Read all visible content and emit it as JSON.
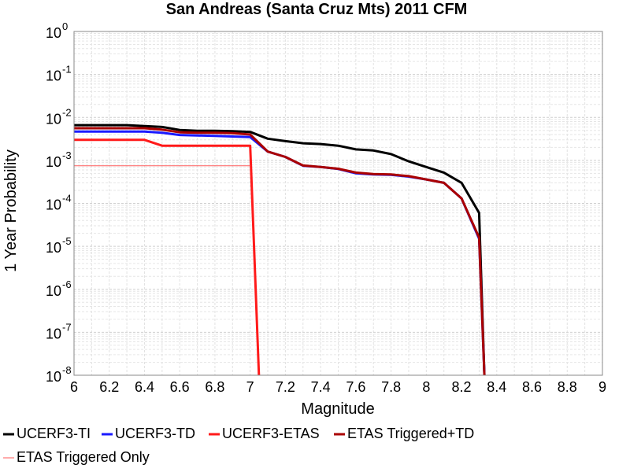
{
  "chart_data": {
    "type": "line",
    "title": "San Andreas (Santa Cruz Mts) 2011 CFM",
    "xlabel": "Magnitude",
    "ylabel": "1 Year Probability",
    "x_scale": "linear",
    "y_scale": "log",
    "xlim": [
      6,
      9
    ],
    "ylim": [
      1e-08,
      1
    ],
    "grid": true,
    "x_ticks": [
      "6",
      "6.2",
      "6.4",
      "6.6",
      "6.8",
      "7",
      "7.2",
      "7.4",
      "7.6",
      "7.8",
      "8",
      "8.2",
      "8.4",
      "8.6",
      "8.8",
      "9"
    ],
    "y_ticks": [
      {
        "base": "10",
        "exp": "-8"
      },
      {
        "base": "10",
        "exp": "-7"
      },
      {
        "base": "10",
        "exp": "-6"
      },
      {
        "base": "10",
        "exp": "-5"
      },
      {
        "base": "10",
        "exp": "-4"
      },
      {
        "base": "10",
        "exp": "-3"
      },
      {
        "base": "10",
        "exp": "-2"
      },
      {
        "base": "10",
        "exp": "-1"
      },
      {
        "base": "10",
        "exp": "0"
      }
    ],
    "legend_position": "bottom",
    "series": [
      {
        "name": "UCERF3-TI",
        "color": "#000000",
        "x": [
          6.0,
          6.1,
          6.2,
          6.3,
          6.4,
          6.5,
          6.6,
          6.7,
          6.8,
          6.9,
          7.0,
          7.1,
          7.2,
          7.3,
          7.4,
          7.5,
          7.6,
          7.7,
          7.8,
          7.9,
          8.0,
          8.1,
          8.2,
          8.3,
          8.33
        ],
        "y": [
          0.0066,
          0.0066,
          0.0066,
          0.0066,
          0.0063,
          0.006,
          0.0051,
          0.0049,
          0.0049,
          0.0048,
          0.0046,
          0.0032,
          0.0028,
          0.0025,
          0.0024,
          0.0022,
          0.0018,
          0.0017,
          0.0014,
          0.00095,
          0.0007,
          0.00052,
          0.0003,
          6e-05,
          1e-08
        ]
      },
      {
        "name": "UCERF3-TD",
        "color": "#1a1aff",
        "x": [
          6.0,
          6.1,
          6.2,
          6.3,
          6.4,
          6.5,
          6.6,
          6.7,
          6.8,
          6.9,
          7.0,
          7.1,
          7.2,
          7.3,
          7.4,
          7.5,
          7.6,
          7.7,
          7.8,
          7.9,
          8.0,
          8.1,
          8.2,
          8.3,
          8.33
        ],
        "y": [
          0.0047,
          0.0047,
          0.0047,
          0.0047,
          0.0047,
          0.0044,
          0.0039,
          0.0038,
          0.0037,
          0.0036,
          0.0035,
          0.0016,
          0.0012,
          0.00075,
          0.0007,
          0.00063,
          0.0005,
          0.00047,
          0.00046,
          0.00042,
          0.00036,
          0.0003,
          0.00013,
          1.5e-05,
          1e-08
        ]
      },
      {
        "name": "UCERF3-ETAS",
        "color": "#ff1a1a",
        "x": [
          6.0,
          6.1,
          6.2,
          6.3,
          6.4,
          6.5,
          6.6,
          6.7,
          6.8,
          6.9,
          7.0,
          7.05
        ],
        "y": [
          0.003,
          0.003,
          0.003,
          0.003,
          0.003,
          0.0022,
          0.0022,
          0.0022,
          0.0022,
          0.0022,
          0.0022,
          1e-08
        ]
      },
      {
        "name": "ETAS Triggered+TD",
        "color": "#aa0000",
        "x": [
          6.0,
          6.1,
          6.2,
          6.3,
          6.4,
          6.5,
          6.6,
          6.7,
          6.8,
          6.9,
          7.0,
          7.1,
          7.2,
          7.3,
          7.4,
          7.5,
          7.6,
          7.7,
          7.8,
          7.9,
          8.0,
          8.1,
          8.2,
          8.3,
          8.33
        ],
        "y": [
          0.0056,
          0.0056,
          0.0056,
          0.0056,
          0.0056,
          0.0052,
          0.0045,
          0.0044,
          0.0044,
          0.0043,
          0.004,
          0.0016,
          0.0012,
          0.00076,
          0.0007,
          0.00064,
          0.00052,
          0.00048,
          0.00047,
          0.00043,
          0.00036,
          0.0003,
          0.00013,
          1.6e-05,
          1e-08
        ]
      },
      {
        "name": "ETAS Triggered Only",
        "color": "#ff5a5a",
        "x": [
          6.0,
          6.1,
          6.2,
          6.3,
          6.4,
          6.5,
          6.6,
          6.7,
          6.8,
          6.9,
          7.0
        ],
        "y": [
          0.00075,
          0.00075,
          0.00075,
          0.00075,
          0.00075,
          0.00075,
          0.00075,
          0.00075,
          0.00075,
          0.00075,
          0.00075
        ]
      }
    ]
  }
}
